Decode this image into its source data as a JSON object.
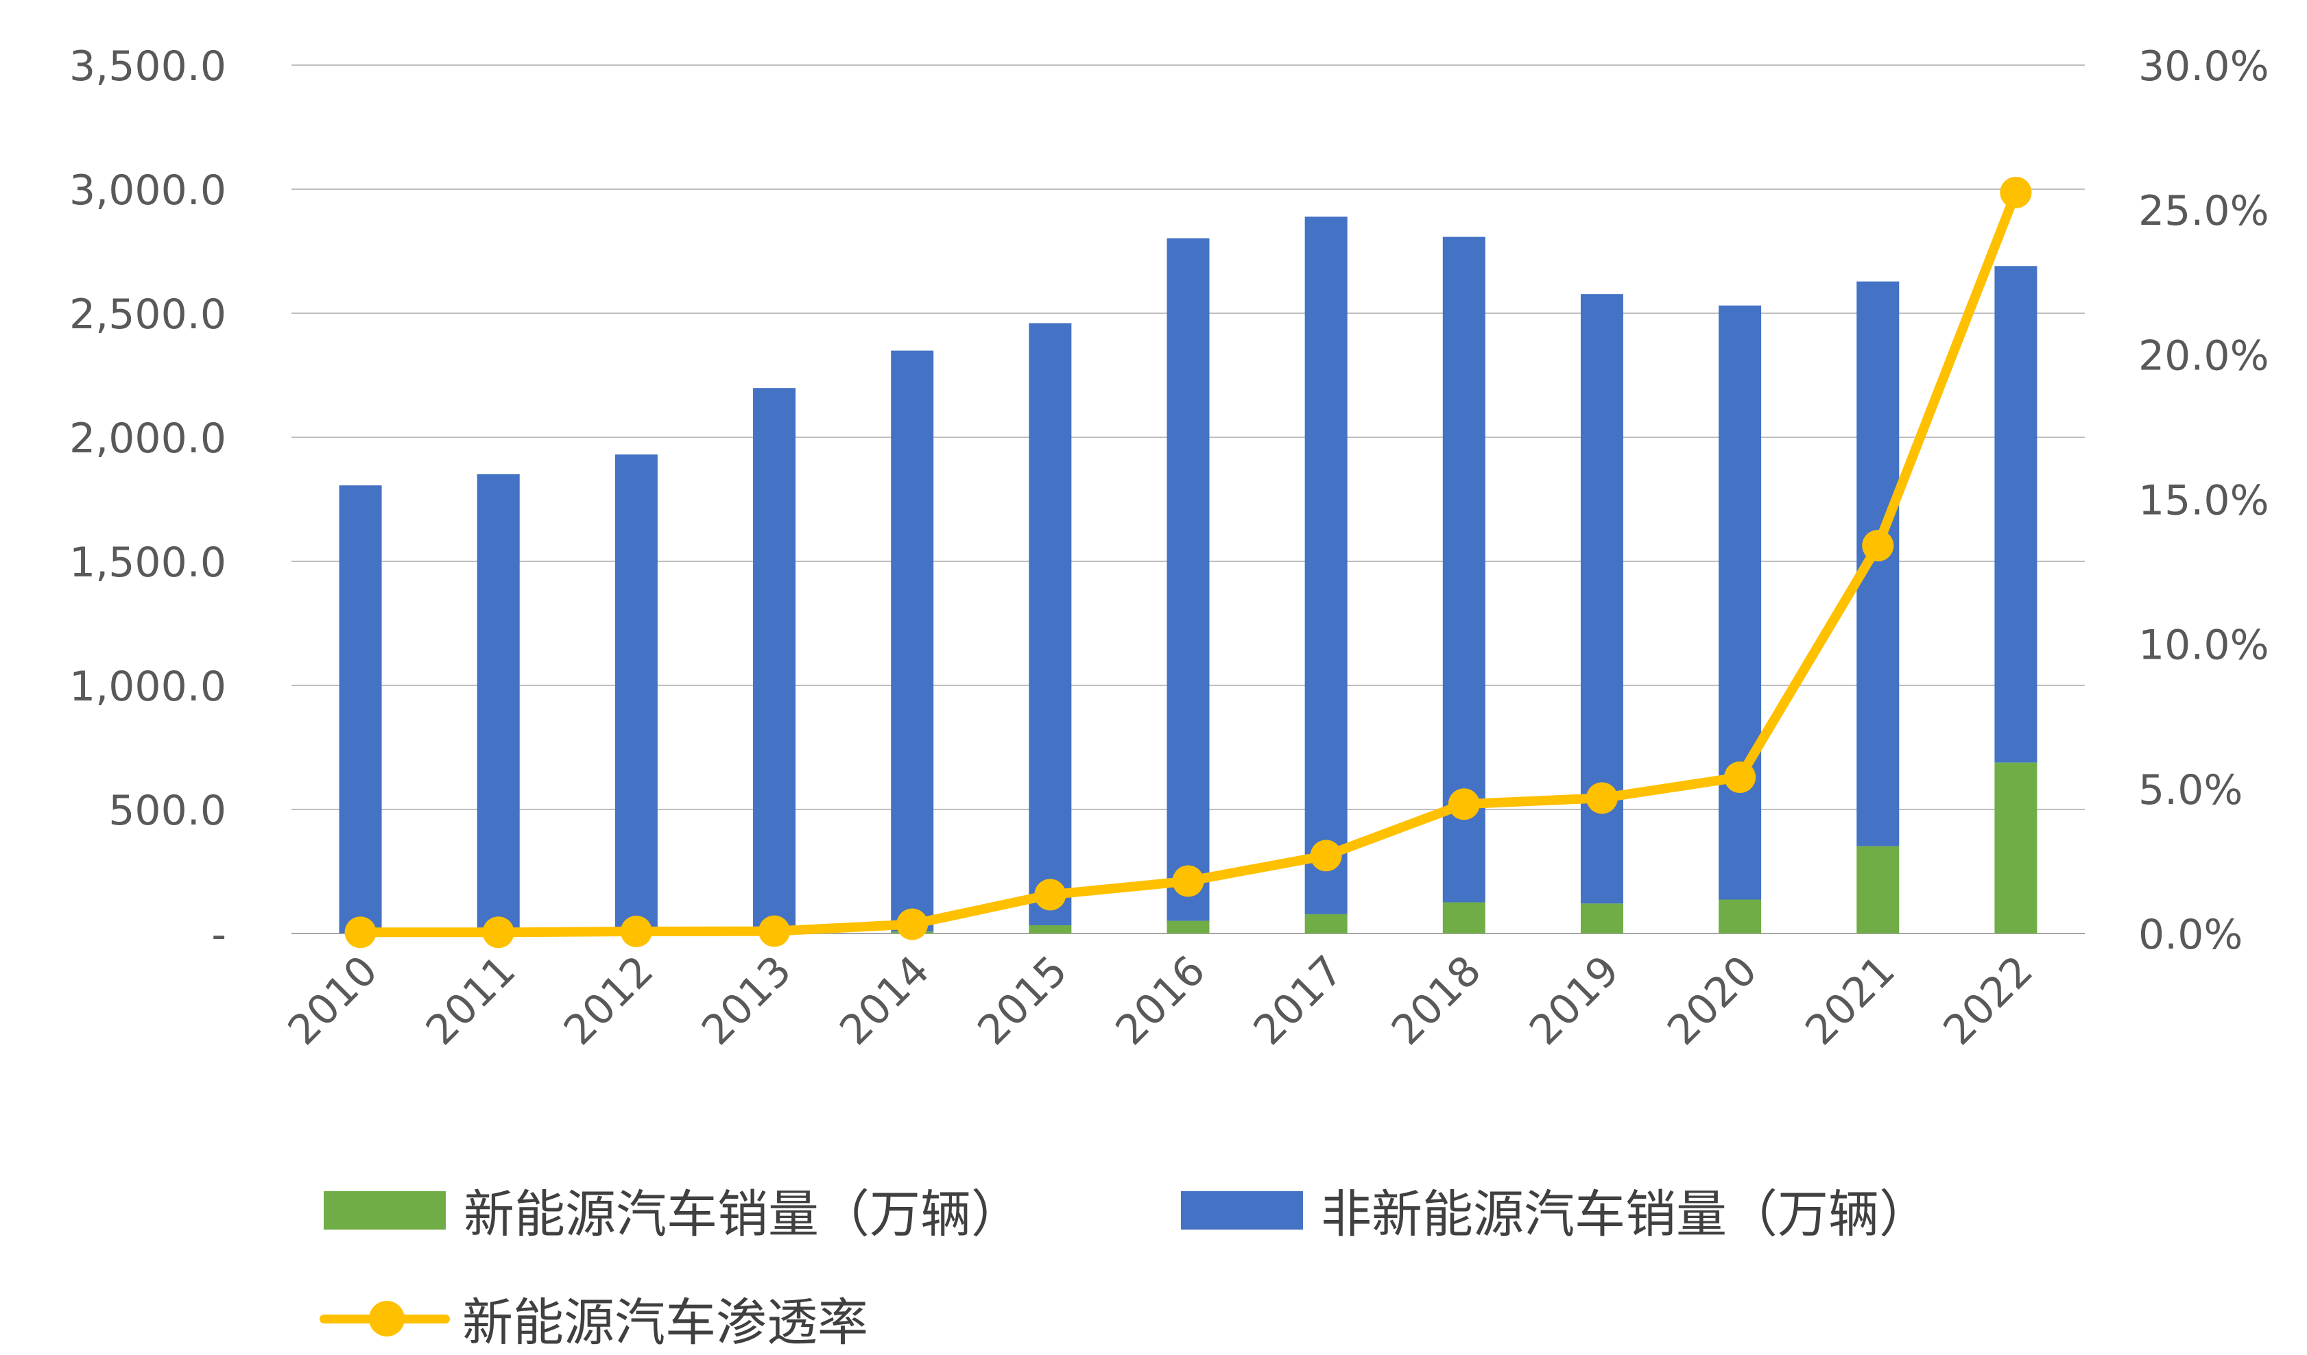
{
  "colors": {
    "nev": "#70AD47",
    "non_nev": "#4472C4",
    "rate": "#FFC000",
    "grid": "#BFBFBF",
    "text": "#595959"
  },
  "chart_data": {
    "type": "bar",
    "stacked": true,
    "categories": [
      "2010",
      "2011",
      "2012",
      "2013",
      "2014",
      "2015",
      "2016",
      "2017",
      "2018",
      "2019",
      "2020",
      "2021",
      "2022"
    ],
    "series": [
      {
        "name": "新能源汽车销量（万辆）",
        "axis": "left",
        "color": "#70AD47",
        "values": [
          0.8,
          0.8,
          1.3,
          1.8,
          7.5,
          33.1,
          50.7,
          77.7,
          125.6,
          120.6,
          136.7,
          352.1,
          688.7
        ]
      },
      {
        "name": "非新能源汽车销量（万辆）",
        "axis": "left",
        "color": "#4472C4",
        "values": [
          1805.3,
          1850.4,
          1929.3,
          2196.6,
          2341.7,
          2426.9,
          2751.6,
          2811.7,
          2682.1,
          2456.4,
          2394.4,
          2275.9,
          2001.3
        ]
      },
      {
        "name": "新能源汽车渗透率",
        "type": "line",
        "axis": "right",
        "color": "#FFC000",
        "values": [
          0.04,
          0.04,
          0.07,
          0.08,
          0.32,
          1.34,
          1.81,
          2.69,
          4.47,
          4.68,
          5.4,
          13.4,
          25.6
        ]
      }
    ],
    "yaxis_left": {
      "min": 0,
      "max": 3500,
      "ticks": [
        "-",
        "500.0",
        "1,000.0",
        "1,500.0",
        "2,000.0",
        "2,500.0",
        "3,000.0",
        "3,500.0"
      ]
    },
    "yaxis_right": {
      "min": 0,
      "max": 30,
      "ticks": [
        "0.0%",
        "5.0%",
        "10.0%",
        "15.0%",
        "20.0%",
        "25.0%",
        "30.0%"
      ]
    },
    "grid": true,
    "legend_position": "bottom"
  },
  "legend": {
    "nev_label": "新能源汽车销量（万辆）",
    "non_nev_label": "非新能源汽车销量（万辆）",
    "rate_label": "新能源汽车渗透率"
  }
}
